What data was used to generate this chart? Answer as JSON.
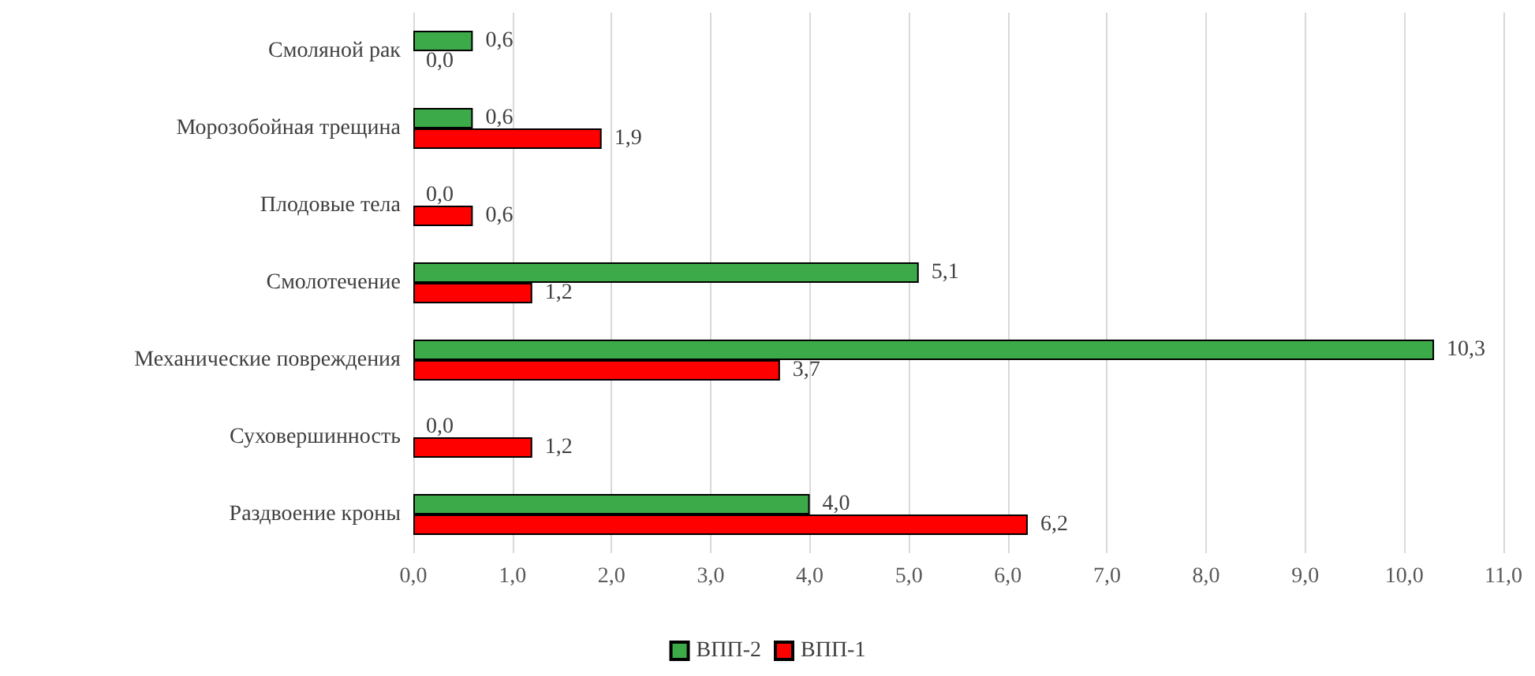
{
  "chart_data": {
    "type": "bar",
    "orientation": "horizontal",
    "categories": [
      "Смоляной рак",
      "Морозобойная трещина",
      "Плодовые тела",
      "Смолотечение",
      "Механические повреждения",
      "Суховершинность",
      "Раздвоение кроны"
    ],
    "series": [
      {
        "name": "ВПП-2",
        "color": "#3daa4a",
        "values": [
          0.6,
          0.6,
          0.0,
          5.1,
          10.3,
          0.0,
          4.0
        ],
        "value_labels": [
          "0,6",
          "0,6",
          "0,0",
          "5,1",
          "10,3",
          "0,0",
          "4,0"
        ]
      },
      {
        "name": "ВПП-1",
        "color": "#ff0000",
        "values": [
          0.0,
          1.9,
          0.6,
          1.2,
          3.7,
          1.2,
          6.2
        ],
        "value_labels": [
          "0,0",
          "1,9",
          "0,6",
          "1,2",
          "3,7",
          "1,2",
          "6,2"
        ]
      }
    ],
    "xlim": [
      0,
      11
    ],
    "xticks": [
      {
        "value": 0,
        "label": "0,0"
      },
      {
        "value": 1,
        "label": "1,0"
      },
      {
        "value": 2,
        "label": "2,0"
      },
      {
        "value": 3,
        "label": "3,0"
      },
      {
        "value": 4,
        "label": "4,0"
      },
      {
        "value": 5,
        "label": "5,0"
      },
      {
        "value": 6,
        "label": "6,0"
      },
      {
        "value": 7,
        "label": "7,0"
      },
      {
        "value": 8,
        "label": "8,0"
      },
      {
        "value": 9,
        "label": "9,0"
      },
      {
        "value": 10,
        "label": "10,0"
      },
      {
        "value": 11,
        "label": "11,0"
      }
    ],
    "grid": "x",
    "legend": "bottom"
  }
}
